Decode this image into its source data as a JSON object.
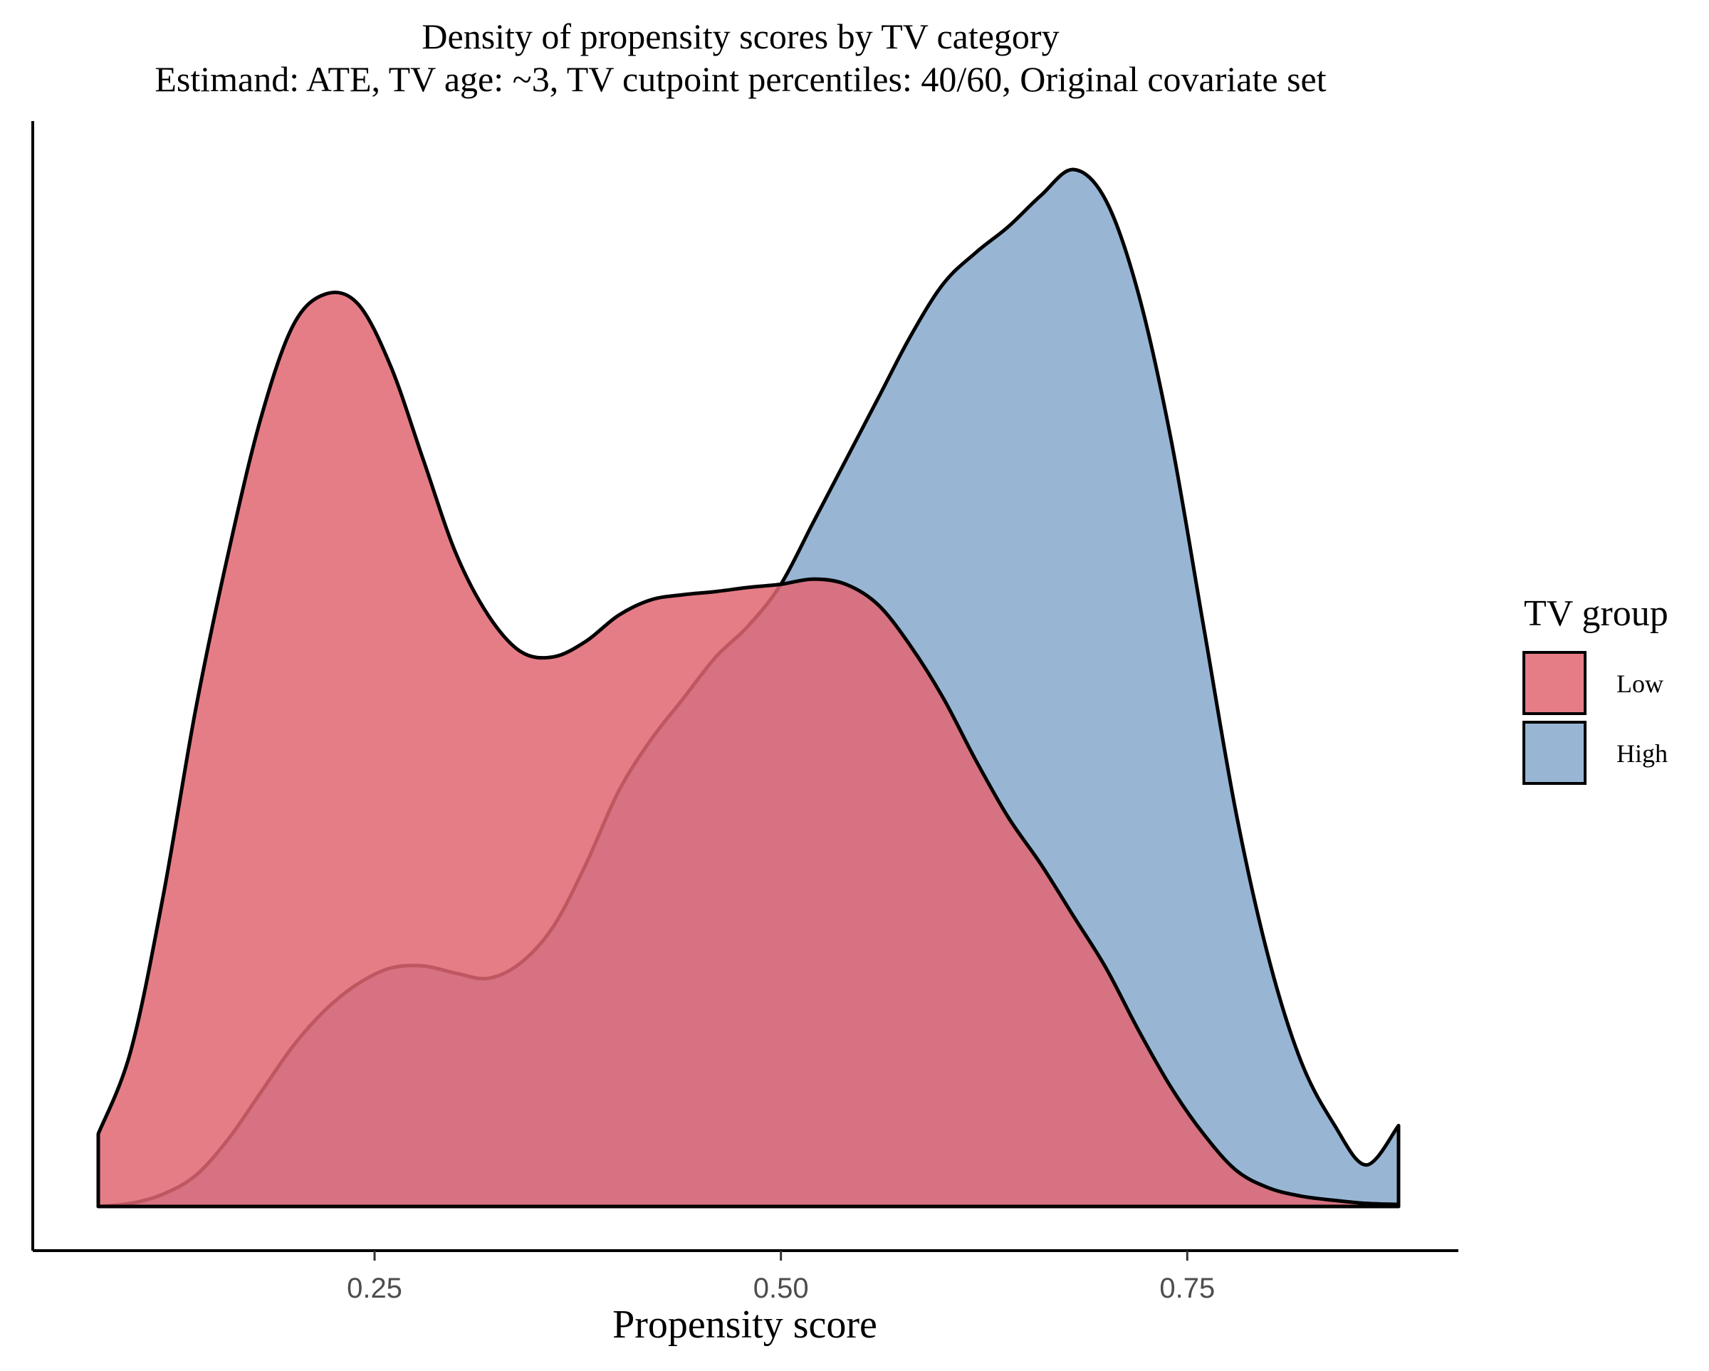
{
  "chart_data": {
    "type": "area",
    "title": "Density of propensity scores by TV category",
    "subtitle": "Estimand: ATE, TV age: ~3, TV cutpoint percentiles: 40/60, Original covariate set",
    "xlabel": "Propensity score",
    "ylabel": "",
    "x_ticks": [
      0.25,
      0.5,
      0.75
    ],
    "x_tick_labels": [
      "0.25",
      "0.50",
      "0.75"
    ],
    "xlim": [
      0.08,
      0.88
    ],
    "ylim": [
      0,
      1.0
    ],
    "y_ticks_shown": false,
    "grid": false,
    "legend": {
      "title": "TV group",
      "placement": "right"
    },
    "series": [
      {
        "name": "Low",
        "color": "#e06672",
        "opacity": 0.85,
        "x": [
          0.08,
          0.1,
          0.12,
          0.14,
          0.16,
          0.18,
          0.2,
          0.22,
          0.24,
          0.26,
          0.28,
          0.3,
          0.32,
          0.34,
          0.36,
          0.38,
          0.4,
          0.42,
          0.44,
          0.46,
          0.48,
          0.5,
          0.52,
          0.54,
          0.56,
          0.58,
          0.6,
          0.62,
          0.64,
          0.66,
          0.68,
          0.7,
          0.72,
          0.74,
          0.76,
          0.78,
          0.8,
          0.82,
          0.84,
          0.86,
          0.88
        ],
        "y": [
          0.07,
          0.15,
          0.3,
          0.48,
          0.63,
          0.76,
          0.85,
          0.88,
          0.87,
          0.81,
          0.72,
          0.63,
          0.57,
          0.535,
          0.53,
          0.545,
          0.57,
          0.585,
          0.59,
          0.593,
          0.597,
          0.6,
          0.605,
          0.6,
          0.58,
          0.54,
          0.49,
          0.43,
          0.375,
          0.33,
          0.28,
          0.23,
          0.17,
          0.115,
          0.07,
          0.035,
          0.018,
          0.01,
          0.006,
          0.003,
          0.002
        ]
      },
      {
        "name": "High",
        "color": "#7ea3c9",
        "opacity": 0.8,
        "x": [
          0.08,
          0.1,
          0.12,
          0.14,
          0.16,
          0.18,
          0.2,
          0.22,
          0.24,
          0.26,
          0.28,
          0.3,
          0.32,
          0.34,
          0.36,
          0.38,
          0.4,
          0.42,
          0.44,
          0.46,
          0.48,
          0.5,
          0.52,
          0.54,
          0.56,
          0.58,
          0.6,
          0.62,
          0.64,
          0.66,
          0.68,
          0.7,
          0.72,
          0.74,
          0.76,
          0.78,
          0.8,
          0.82,
          0.84,
          0.86,
          0.88
        ],
        "y": [
          0.0,
          0.003,
          0.012,
          0.03,
          0.065,
          0.11,
          0.155,
          0.19,
          0.215,
          0.23,
          0.232,
          0.225,
          0.22,
          0.235,
          0.27,
          0.33,
          0.4,
          0.45,
          0.49,
          0.53,
          0.56,
          0.6,
          0.66,
          0.72,
          0.78,
          0.84,
          0.89,
          0.92,
          0.945,
          0.975,
          1.0,
          0.97,
          0.88,
          0.74,
          0.56,
          0.38,
          0.24,
          0.14,
          0.08,
          0.04,
          0.078
        ]
      }
    ]
  }
}
